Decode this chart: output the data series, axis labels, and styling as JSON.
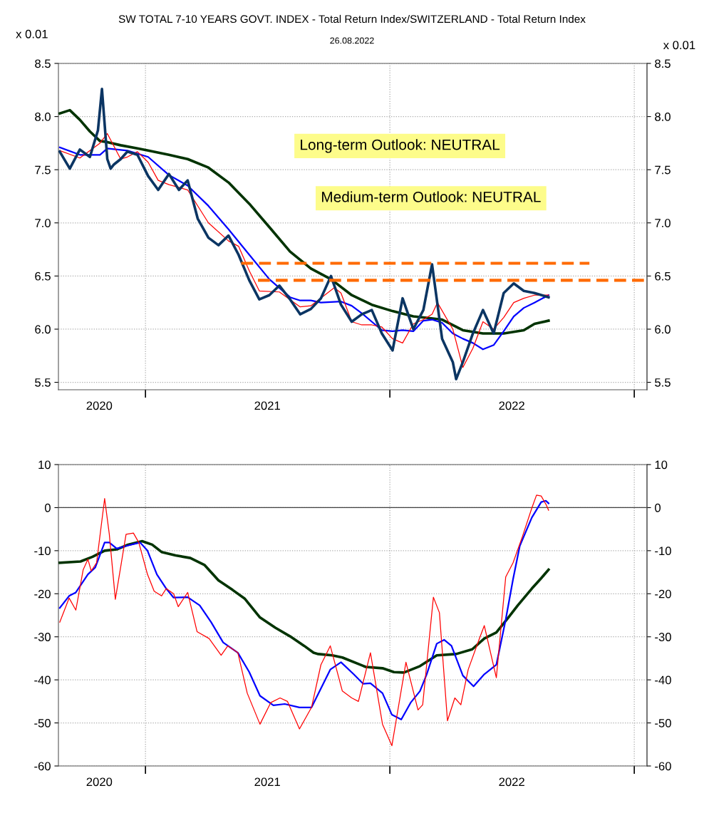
{
  "chart_data": [
    {
      "type": "line",
      "title": "SW TOTAL 7-10 YEARS GOVT. INDEX - Total Return Index/SWITZERLAND - Total Return Index",
      "subtitle": "26.08.2022",
      "ylabel": "x 0.01",
      "y2label": "x 0.01",
      "annotations": [
        "Long-term Outlook: NEUTRAL",
        "Medium-term Outlook: NEUTRAL"
      ],
      "xlim": [
        "2020-08-24",
        "2023-01-20"
      ],
      "xticks": [
        {
          "value": "2020-10-24",
          "label": "2020"
        },
        {
          "value": "2021-01-01",
          "label": null
        },
        {
          "value": "2021-07-02",
          "label": "2021"
        },
        {
          "value": "2022-01-01",
          "label": null
        },
        {
          "value": "2022-07-02",
          "label": "2022"
        },
        {
          "value": "2023-01-01",
          "label": null
        }
      ],
      "ylim": [
        5.43,
        8.5
      ],
      "yticks": [
        {
          "value": 5.5,
          "label": "5.5"
        },
        {
          "value": 6,
          "label": "6.0"
        },
        {
          "value": 6.5,
          "label": "6.5"
        },
        {
          "value": 7,
          "label": "7.0"
        },
        {
          "value": 7.5,
          "label": "7.5"
        },
        {
          "value": 8,
          "label": "8.0"
        },
        {
          "value": 8.5,
          "label": "8.5"
        }
      ],
      "y2lim": [
        5.43,
        8.5
      ],
      "y2ticks": [
        {
          "value": 5.5,
          "label": "5.5"
        },
        {
          "value": 6,
          "label": "6.0"
        },
        {
          "value": 6.5,
          "label": "6.5"
        },
        {
          "value": 7,
          "label": "7.0"
        },
        {
          "value": 7.5,
          "label": "7.5"
        },
        {
          "value": 8,
          "label": "8.0"
        },
        {
          "value": 8.5,
          "label": "8.5"
        }
      ],
      "grid": true,
      "marker": "none",
      "series": [
        {
          "color": "#003300",
          "x": [
            "2020-08-26",
            "2020-09-10",
            "2020-09-25",
            "2020-10-10",
            "2020-10-25",
            "2020-11-05",
            "2020-11-25",
            "2020-12-20",
            "2021-01-05",
            "2021-02-05",
            "2021-03-05",
            "2021-04-05",
            "2021-05-05",
            "2021-06-05",
            "2021-07-05",
            "2021-08-05",
            "2021-09-05",
            "2021-10-05",
            "2021-11-05",
            "2021-12-05",
            "2022-01-05",
            "2022-02-05",
            "2022-02-20",
            "2022-03-20",
            "2022-04-20",
            "2022-05-20",
            "2022-06-20",
            "2022-07-20",
            "2022-08-05",
            "2022-08-26"
          ],
          "values": [
            8.03,
            8.06,
            7.97,
            7.86,
            7.77,
            7.76,
            7.73,
            7.7,
            7.68,
            7.64,
            7.6,
            7.52,
            7.38,
            7.18,
            6.96,
            6.73,
            6.57,
            6.47,
            6.32,
            6.23,
            6.17,
            6.12,
            6.11,
            6.09,
            5.99,
            5.96,
            5.96,
            5.99,
            6.05,
            6.08
          ]
        },
        {
          "color": "#0000ff",
          "x": [
            "2020-08-26",
            "2020-09-25",
            "2020-10-25",
            "2020-11-05",
            "2020-12-05",
            "2021-01-05",
            "2021-02-05",
            "2021-03-05",
            "2021-04-05",
            "2021-05-05",
            "2021-06-05",
            "2021-07-05",
            "2021-08-05",
            "2021-08-20",
            "2021-09-05",
            "2021-09-20",
            "2021-10-20",
            "2021-11-05",
            "2021-11-20",
            "2021-12-05",
            "2021-12-20",
            "2022-01-05",
            "2022-01-20",
            "2022-02-05",
            "2022-02-20",
            "2022-03-05",
            "2022-03-20",
            "2022-04-05",
            "2022-04-20",
            "2022-05-05",
            "2022-05-20",
            "2022-06-05",
            "2022-06-20",
            "2022-07-05",
            "2022-07-20",
            "2022-08-05",
            "2022-08-26"
          ],
          "values": [
            7.71,
            7.64,
            7.64,
            7.7,
            7.68,
            7.62,
            7.45,
            7.35,
            7.16,
            6.94,
            6.7,
            6.47,
            6.3,
            6.27,
            6.27,
            6.25,
            6.26,
            6.22,
            6.15,
            6.07,
            5.99,
            5.98,
            5.99,
            5.98,
            6.08,
            6.09,
            6.06,
            5.96,
            5.91,
            5.87,
            5.81,
            5.85,
            5.98,
            6.12,
            6.2,
            6.25,
            6.32
          ]
        },
        {
          "color": "#ff0000",
          "x": [
            "2020-08-26",
            "2020-09-25",
            "2020-10-25",
            "2020-11-05",
            "2020-11-25",
            "2020-12-05",
            "2020-12-20",
            "2021-01-05",
            "2021-01-20",
            "2021-02-05",
            "2021-03-05",
            "2021-04-05",
            "2021-05-05",
            "2021-05-20",
            "2021-06-05",
            "2021-06-20",
            "2021-07-20",
            "2021-08-20",
            "2021-09-05",
            "2021-10-10",
            "2021-10-20",
            "2021-11-05",
            "2021-11-20",
            "2021-12-05",
            "2021-12-20",
            "2022-01-05",
            "2022-01-20",
            "2022-02-05",
            "2022-02-20",
            "2022-03-05",
            "2022-03-13",
            "2022-04-05",
            "2022-04-20",
            "2022-05-05",
            "2022-05-20",
            "2022-06-05",
            "2022-06-20",
            "2022-07-05",
            "2022-07-20",
            "2022-08-05",
            "2022-08-26"
          ],
          "values": [
            7.68,
            7.61,
            7.75,
            7.84,
            7.6,
            7.62,
            7.67,
            7.57,
            7.4,
            7.36,
            7.31,
            7.0,
            6.83,
            6.78,
            6.55,
            6.36,
            6.35,
            6.21,
            6.22,
            6.39,
            6.34,
            6.07,
            6.04,
            6.04,
            6.02,
            5.91,
            5.87,
            6.05,
            6.09,
            6.14,
            6.25,
            6.0,
            5.64,
            5.82,
            6.07,
            6.0,
            6.11,
            6.25,
            6.29,
            6.32,
            6.32
          ]
        },
        {
          "color": "#0b3563",
          "x": [
            "2020-08-26",
            "2020-09-10",
            "2020-09-25",
            "2020-10-10",
            "2020-10-22",
            "2020-10-28",
            "2020-11-05",
            "2020-11-10",
            "2020-11-15",
            "2020-11-25",
            "2020-12-05",
            "2020-12-20",
            "2021-01-05",
            "2021-01-20",
            "2021-02-05",
            "2021-02-20",
            "2021-03-05",
            "2021-03-20",
            "2021-04-05",
            "2021-04-20",
            "2021-05-05",
            "2021-05-20",
            "2021-06-05",
            "2021-06-20",
            "2021-07-05",
            "2021-07-20",
            "2021-08-05",
            "2021-08-20",
            "2021-09-05",
            "2021-09-20",
            "2021-10-05",
            "2021-10-20",
            "2021-11-05",
            "2021-11-20",
            "2021-12-05",
            "2021-12-20",
            "2022-01-05",
            "2022-01-20",
            "2022-02-05",
            "2022-02-20",
            "2022-03-05",
            "2022-03-20",
            "2022-04-05",
            "2022-04-10",
            "2022-04-20",
            "2022-05-05",
            "2022-05-20",
            "2022-06-05",
            "2022-06-20",
            "2022-07-05",
            "2022-07-20",
            "2022-08-05",
            "2022-08-26"
          ],
          "values": [
            7.67,
            7.51,
            7.69,
            7.62,
            7.87,
            8.26,
            7.6,
            7.51,
            7.55,
            7.6,
            7.67,
            7.64,
            7.44,
            7.31,
            7.46,
            7.31,
            7.4,
            7.04,
            6.86,
            6.79,
            6.88,
            6.7,
            6.46,
            6.28,
            6.32,
            6.41,
            6.28,
            6.14,
            6.19,
            6.29,
            6.5,
            6.23,
            6.07,
            6.14,
            6.18,
            5.96,
            5.8,
            6.29,
            6.0,
            6.18,
            6.61,
            5.91,
            5.69,
            5.53,
            5.69,
            5.96,
            6.18,
            5.96,
            6.34,
            6.43,
            6.36,
            6.34,
            6.3
          ]
        },
        {
          "color": "#ff6a00",
          "line_style": "dashed",
          "x": [
            "2021-05-24",
            "2022-10-26"
          ],
          "values": [
            6.62,
            6.62
          ]
        },
        {
          "color": "#ff6a00",
          "line_style": "dashed",
          "x": [
            "2021-06-18",
            "2023-01-20"
          ],
          "values": [
            6.46,
            6.46
          ]
        }
      ]
    },
    {
      "type": "line",
      "xlim": [
        "2020-08-24",
        "2023-01-20"
      ],
      "xticks": [
        {
          "value": "2020-10-24",
          "label": "2020"
        },
        {
          "value": "2021-01-01",
          "label": null
        },
        {
          "value": "2021-07-02",
          "label": "2021"
        },
        {
          "value": "2022-01-01",
          "label": null
        },
        {
          "value": "2022-07-02",
          "label": "2022"
        },
        {
          "value": "2023-01-01",
          "label": null
        }
      ],
      "ylim": [
        -60,
        10
      ],
      "yticks": [
        -60,
        -50,
        -40,
        -30,
        -20,
        -10,
        0,
        10
      ],
      "y2lim": [
        -60,
        10
      ],
      "y2ticks": [
        -60,
        -50,
        -40,
        -30,
        -20,
        -10,
        0,
        10
      ],
      "grid": true,
      "marker": "none",
      "ref_lines": [
        {
          "axis": "y",
          "value": 0,
          "color": "#404040",
          "line_style": "solid"
        }
      ],
      "series": [
        {
          "color": "#003300",
          "x": [
            "2020-08-26",
            "2020-09-26",
            "2020-10-14",
            "2020-11-01",
            "2020-11-19",
            "2020-12-06",
            "2020-12-27",
            "2021-01-11",
            "2021-01-25",
            "2021-02-15",
            "2021-03-09",
            "2021-03-30",
            "2021-04-20",
            "2021-05-11",
            "2021-05-29",
            "2021-06-21",
            "2021-07-14",
            "2021-08-05",
            "2021-08-26",
            "2021-09-09",
            "2021-09-16",
            "2021-10-07",
            "2021-10-22",
            "2021-11-26",
            "2021-12-21",
            "2022-01-07",
            "2022-01-22",
            "2022-02-15",
            "2022-03-12",
            "2022-04-10",
            "2022-05-04",
            "2022-05-22",
            "2022-06-09",
            "2022-06-27",
            "2022-07-11",
            "2022-08-01",
            "2022-08-15",
            "2022-08-26"
          ],
          "values": [
            -12.8,
            -12.5,
            -11.4,
            -10,
            -9.7,
            -8.6,
            -7.8,
            -8.6,
            -10.3,
            -11.1,
            -11.7,
            -13.3,
            -16.9,
            -19.1,
            -21.1,
            -25.5,
            -27.9,
            -29.9,
            -32.1,
            -33.7,
            -34,
            -34.3,
            -34.8,
            -37,
            -37.3,
            -38.2,
            -38.3,
            -36.8,
            -34.3,
            -34,
            -32.9,
            -30.4,
            -29,
            -25.5,
            -22.7,
            -18.8,
            -16.4,
            -14.4
          ]
        },
        {
          "color": "#0000ff",
          "x": [
            "2020-08-26",
            "2020-09-09",
            "2020-09-19",
            "2020-10-07",
            "2020-10-18",
            "2020-11-01",
            "2020-11-08",
            "2020-11-19",
            "2020-12-03",
            "2020-12-24",
            "2021-01-04",
            "2021-01-18",
            "2021-02-01",
            "2021-02-12",
            "2021-03-05",
            "2021-03-23",
            "2021-04-09",
            "2021-04-27",
            "2021-05-19",
            "2021-06-05",
            "2021-06-21",
            "2021-07-11",
            "2021-07-28",
            "2021-08-19",
            "2021-09-06",
            "2021-09-20",
            "2021-10-04",
            "2021-10-20",
            "2021-11-08",
            "2021-11-22",
            "2021-12-03",
            "2021-12-21",
            "2022-01-04",
            "2022-01-18",
            "2022-02-01",
            "2022-02-15",
            "2022-02-25",
            "2022-03-12",
            "2022-03-23",
            "2022-04-03",
            "2022-04-20",
            "2022-05-06",
            "2022-05-22",
            "2022-06-09",
            "2022-06-23",
            "2022-07-04",
            "2022-07-14",
            "2022-08-01",
            "2022-08-15",
            "2022-08-22",
            "2022-08-26"
          ],
          "values": [
            -23.3,
            -20.5,
            -19.7,
            -15.5,
            -13.9,
            -8.1,
            -8.1,
            -9.5,
            -8.9,
            -8.1,
            -10,
            -15.5,
            -18.8,
            -20.9,
            -20.8,
            -22.7,
            -26.6,
            -31.3,
            -33.7,
            -38.2,
            -43.7,
            -45.9,
            -45.6,
            -46.4,
            -46.4,
            -42,
            -37.6,
            -35.9,
            -38.7,
            -40.9,
            -40.8,
            -43.1,
            -48.1,
            -49.2,
            -45.3,
            -42.6,
            -38.7,
            -31.6,
            -30.7,
            -32.1,
            -39,
            -41.5,
            -38.7,
            -36.5,
            -26,
            -16.6,
            -8.9,
            -2.3,
            1.3,
            1.6,
            1.0
          ]
        },
        {
          "color": "#ff0000",
          "x": [
            "2020-08-26",
            "2020-09-02",
            "2020-09-09",
            "2020-09-19",
            "2020-09-30",
            "2020-10-07",
            "2020-10-12",
            "2020-10-20",
            "2020-11-01",
            "2020-11-08",
            "2020-11-17",
            "2020-11-26",
            "2020-12-03",
            "2020-12-14",
            "2020-12-22",
            "2021-01-04",
            "2021-01-14",
            "2021-01-25",
            "2021-02-01",
            "2021-02-12",
            "2021-02-19",
            "2021-03-05",
            "2021-03-19",
            "2021-04-06",
            "2021-04-24",
            "2021-05-04",
            "2021-05-19",
            "2021-06-02",
            "2021-06-21",
            "2021-07-07",
            "2021-07-21",
            "2021-08-01",
            "2021-08-19",
            "2021-09-06",
            "2021-09-20",
            "2021-10-04",
            "2021-10-22",
            "2021-11-05",
            "2021-11-15",
            "2021-12-03",
            "2021-12-21",
            "2022-01-04",
            "2022-01-25",
            "2022-02-12",
            "2022-02-19",
            "2022-03-07",
            "2022-03-16",
            "2022-03-28",
            "2022-04-08",
            "2022-04-17",
            "2022-04-28",
            "2022-05-14",
            "2022-05-22",
            "2022-06-09",
            "2022-06-23",
            "2022-07-04",
            "2022-07-18",
            "2022-08-01",
            "2022-08-08",
            "2022-08-15",
            "2022-08-22",
            "2022-08-26"
          ],
          "values": [
            -26.6,
            -23.8,
            -21,
            -23.8,
            -14.4,
            -12,
            -14.7,
            -12.8,
            2.1,
            -6.2,
            -21.3,
            -12.8,
            -6.2,
            -5.9,
            -8.1,
            -15.5,
            -19.4,
            -20.5,
            -18.8,
            -20,
            -23,
            -19.7,
            -28.8,
            -30.4,
            -34.3,
            -32.1,
            -33.7,
            -43.1,
            -50.3,
            -45.3,
            -44.2,
            -45,
            -51.4,
            -46.4,
            -36.5,
            -32.1,
            -42.6,
            -44.2,
            -45,
            -33.7,
            -50.3,
            -55.3,
            -35.9,
            -47,
            -45.8,
            -20.8,
            -24.4,
            -49.5,
            -44.2,
            -45.8,
            -37.6,
            -30.7,
            -27.4,
            -39.5,
            -16.1,
            -12.8,
            -6.7,
            -0.1,
            2.9,
            2.7,
            0.8,
            -0.6
          ]
        }
      ]
    }
  ]
}
